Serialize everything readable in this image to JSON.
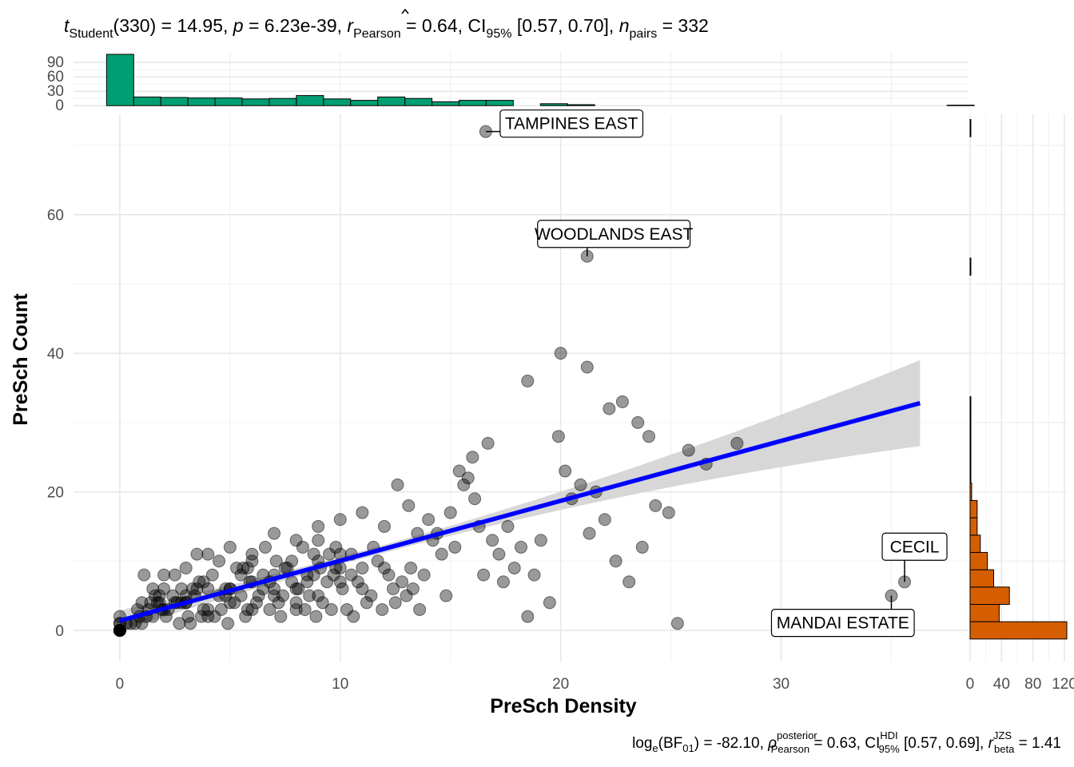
{
  "subtitle": {
    "t_label": "t",
    "t_sub": "Student",
    "t_rest": "(330) = 14.95, ",
    "p_label": "p",
    "p_rest": " = 6.23e-39, ",
    "r_label": "r",
    "r_sub": "Pearson",
    "r_rest": " = 0.64, CI",
    "ci_sub": "95%",
    "ci_rest": " [0.57, 0.70], ",
    "n_label": "n",
    "n_sub": "pairs",
    "n_rest": " = 332"
  },
  "caption": {
    "log_a": "log",
    "log_sub": "e",
    "bf_a": "(BF",
    "bf_sub": "01",
    "bf_rest": ") = -82.10, ",
    "rho": "ρ",
    "rho_sup": "posterior",
    "rho_sub": "Pearson",
    "rho_rest": " = 0.63, CI",
    "hdi_sup": "HDI",
    "hdi_sub": "95%",
    "hdi_rest": " [0.57, 0.69], ",
    "rb": "r",
    "rb_sup": "JZS",
    "rb_sub": "beta",
    "rb_rest": " = 1.41"
  },
  "chart_data": {
    "type": "scatter",
    "xlabel": "PreSch Density",
    "ylabel": "PreSch Count",
    "xlim": [
      -2.1,
      38.5
    ],
    "ylim": [
      -4.5,
      74.5
    ],
    "x_ticks": [
      0,
      10,
      20,
      30
    ],
    "y_ticks": [
      0,
      20,
      40,
      60
    ],
    "point_color": "#000000",
    "point_alpha": 0.4,
    "regression": {
      "intercept": 1.4,
      "slope": 0.865,
      "x_range": [
        0,
        36.3
      ],
      "color": "#0000ff",
      "band_color": "#d3d3d3"
    },
    "points": [
      [
        0,
        0
      ],
      [
        0,
        0
      ],
      [
        0,
        0
      ],
      [
        0,
        0
      ],
      [
        0,
        0
      ],
      [
        0,
        0
      ],
      [
        0,
        0
      ],
      [
        0,
        0
      ],
      [
        0,
        0
      ],
      [
        0,
        0
      ],
      [
        0,
        1
      ],
      [
        0,
        1
      ],
      [
        0,
        2
      ],
      [
        0.3,
        1
      ],
      [
        0.5,
        1
      ],
      [
        0.7,
        1
      ],
      [
        0.9,
        2
      ],
      [
        1,
        1
      ],
      [
        1.1,
        8
      ],
      [
        1.2,
        2
      ],
      [
        1.3,
        3
      ],
      [
        1.4,
        4
      ],
      [
        1.5,
        6
      ],
      [
        1.6,
        5
      ],
      [
        1.7,
        4
      ],
      [
        1.8,
        4
      ],
      [
        1.9,
        3
      ],
      [
        2,
        6
      ],
      [
        2.1,
        2
      ],
      [
        2.2,
        3
      ],
      [
        2.4,
        5
      ],
      [
        2.5,
        8
      ],
      [
        2.6,
        4
      ],
      [
        2.7,
        1
      ],
      [
        2.8,
        6
      ],
      [
        3,
        4
      ],
      [
        3.1,
        2
      ],
      [
        3.2,
        1
      ],
      [
        3.3,
        6
      ],
      [
        3.4,
        5
      ],
      [
        3.5,
        11
      ],
      [
        3.6,
        7
      ],
      [
        3.7,
        2
      ],
      [
        3.8,
        3
      ],
      [
        4,
        3
      ],
      [
        4.2,
        8
      ],
      [
        4.3,
        2
      ],
      [
        4.5,
        10
      ],
      [
        4.6,
        3
      ],
      [
        4.8,
        5
      ],
      [
        4.9,
        1
      ],
      [
        5,
        6
      ],
      [
        5.2,
        4
      ],
      [
        5.3,
        9
      ],
      [
        5.5,
        5
      ],
      [
        5.6,
        9
      ],
      [
        5.7,
        2
      ],
      [
        5.8,
        3
      ],
      [
        5.9,
        7
      ],
      [
        6,
        11
      ],
      [
        6.2,
        4
      ],
      [
        6.3,
        5
      ],
      [
        6.5,
        8
      ],
      [
        6.6,
        12
      ],
      [
        6.8,
        3
      ],
      [
        7,
        6
      ],
      [
        7.1,
        10
      ],
      [
        7.2,
        4
      ],
      [
        7.3,
        2
      ],
      [
        7.4,
        5
      ],
      [
        7.6,
        9
      ],
      [
        7.8,
        7
      ],
      [
        8,
        3
      ],
      [
        8.1,
        6
      ],
      [
        8.3,
        12
      ],
      [
        8.4,
        3
      ],
      [
        8.5,
        8
      ],
      [
        8.6,
        5
      ],
      [
        8.8,
        11
      ],
      [
        8.9,
        2
      ],
      [
        9,
        13
      ],
      [
        9.1,
        9
      ],
      [
        9.2,
        4
      ],
      [
        9.4,
        7
      ],
      [
        9.6,
        3
      ],
      [
        9.7,
        8
      ],
      [
        9.8,
        9
      ],
      [
        10,
        11
      ],
      [
        10.1,
        6
      ],
      [
        10.3,
        3
      ],
      [
        10.5,
        11
      ],
      [
        10.6,
        2
      ],
      [
        10.8,
        7
      ],
      [
        11,
        9
      ],
      [
        11.2,
        4
      ],
      [
        11.4,
        5
      ],
      [
        11.5,
        12
      ],
      [
        11.7,
        10
      ],
      [
        11.9,
        3
      ],
      [
        12,
        15
      ],
      [
        12.2,
        8
      ],
      [
        12.4,
        6
      ],
      [
        12.5,
        4
      ],
      [
        12.6,
        21
      ],
      [
        12.8,
        7
      ],
      [
        13,
        5
      ],
      [
        13.1,
        18
      ],
      [
        13.2,
        9
      ],
      [
        13.3,
        6
      ],
      [
        13.5,
        14
      ],
      [
        13.6,
        3
      ],
      [
        13.8,
        8
      ],
      [
        14,
        16
      ],
      [
        14.2,
        13
      ],
      [
        14.4,
        14
      ],
      [
        14.6,
        11
      ],
      [
        14.8,
        5
      ],
      [
        15,
        17
      ],
      [
        15.2,
        12
      ],
      [
        15.4,
        23
      ],
      [
        15.6,
        21
      ],
      [
        15.8,
        22
      ],
      [
        16,
        25
      ],
      [
        16.1,
        19
      ],
      [
        16.3,
        15
      ],
      [
        16.5,
        8
      ],
      [
        16.7,
        27
      ],
      [
        16.9,
        13
      ],
      [
        17.2,
        11
      ],
      [
        17.4,
        7
      ],
      [
        17.6,
        15
      ],
      [
        17.9,
        9
      ],
      [
        18.2,
        12
      ],
      [
        18.5,
        2
      ],
      [
        18.8,
        8
      ],
      [
        19.1,
        13
      ],
      [
        19.5,
        4
      ],
      [
        19.9,
        28
      ],
      [
        20.2,
        23
      ],
      [
        20.5,
        19
      ],
      [
        20.9,
        21
      ],
      [
        21.3,
        14
      ],
      [
        22,
        16
      ],
      [
        22.5,
        10
      ],
      [
        23.1,
        7
      ],
      [
        23.7,
        12
      ],
      [
        24.3,
        18
      ],
      [
        24.9,
        17
      ],
      [
        25.3,
        1
      ],
      [
        21.6,
        20
      ],
      [
        22.8,
        33
      ],
      [
        18.5,
        36
      ],
      [
        20,
        40
      ],
      [
        21.2,
        38
      ],
      [
        22.2,
        32
      ],
      [
        23.5,
        30
      ],
      [
        24,
        28
      ],
      [
        25.8,
        26
      ],
      [
        26.6,
        24
      ],
      [
        28,
        27
      ],
      [
        3,
        4
      ],
      [
        4,
        2
      ],
      [
        5,
        6
      ],
      [
        6,
        3
      ],
      [
        7,
        5
      ],
      [
        8,
        4
      ],
      [
        9,
        5
      ],
      [
        10,
        7
      ],
      [
        11,
        6
      ],
      [
        12,
        9
      ],
      [
        2,
        8
      ],
      [
        3,
        9
      ],
      [
        4,
        11
      ],
      [
        5,
        12
      ],
      [
        6,
        10
      ],
      [
        7,
        14
      ],
      [
        8,
        13
      ],
      [
        9,
        15
      ],
      [
        10,
        16
      ],
      [
        11,
        17
      ],
      [
        1,
        4
      ],
      [
        2,
        3
      ],
      [
        3,
        5
      ],
      [
        4,
        6
      ],
      [
        5,
        4
      ],
      [
        6,
        7
      ],
      [
        7,
        8
      ],
      [
        8,
        6
      ],
      [
        9,
        10
      ],
      [
        10,
        9
      ],
      [
        1.5,
        2
      ],
      [
        2.5,
        4
      ],
      [
        3.5,
        6
      ],
      [
        4.5,
        5
      ],
      [
        5.5,
        8
      ],
      [
        6.5,
        6
      ],
      [
        7.5,
        9
      ],
      [
        8.5,
        7
      ],
      [
        9.5,
        11
      ],
      [
        10.5,
        8
      ],
      [
        0.8,
        3
      ],
      [
        1.8,
        5
      ],
      [
        2.8,
        4
      ],
      [
        3.8,
        7
      ],
      [
        4.8,
        6
      ],
      [
        5.8,
        9
      ],
      [
        6.8,
        7
      ],
      [
        7.8,
        10
      ],
      [
        8.8,
        8
      ],
      [
        9.8,
        12
      ]
    ],
    "labeled_points": [
      {
        "name": "TAMPINES EAST",
        "x": 16.6,
        "y": 72
      },
      {
        "name": "WOODLANDS EAST",
        "x": 21.2,
        "y": 54
      },
      {
        "name": "CECIL",
        "x": 35.6,
        "y": 7
      },
      {
        "name": "MANDAI ESTATE",
        "x": 35.0,
        "y": 5
      }
    ],
    "x_histogram": {
      "color": "#009e73",
      "y_ticks": [
        0,
        30,
        60,
        90
      ],
      "ylim": [
        -3,
        112
      ],
      "bin_start": -0.6,
      "bin_width": 1.23,
      "counts": [
        107,
        18,
        17,
        16,
        16,
        14,
        15,
        21,
        14,
        11,
        18,
        15,
        8,
        11,
        11,
        0,
        4,
        2,
        0,
        0,
        0,
        0,
        0,
        0,
        0,
        0,
        0,
        0,
        0,
        0,
        0,
        1
      ]
    },
    "y_histogram": {
      "color": "#d55e00",
      "x_ticks": [
        0,
        40,
        80,
        120
      ],
      "xlim": [
        -2,
        124
      ],
      "bin_start": -1.25,
      "bin_width": 2.5,
      "counts": [
        123,
        37,
        50,
        30,
        22,
        13,
        9,
        9,
        2,
        1,
        1,
        1,
        1,
        1,
        0,
        0,
        0,
        0,
        0,
        0,
        0,
        1,
        0,
        0,
        0,
        0,
        0,
        0,
        0,
        1
      ]
    }
  }
}
